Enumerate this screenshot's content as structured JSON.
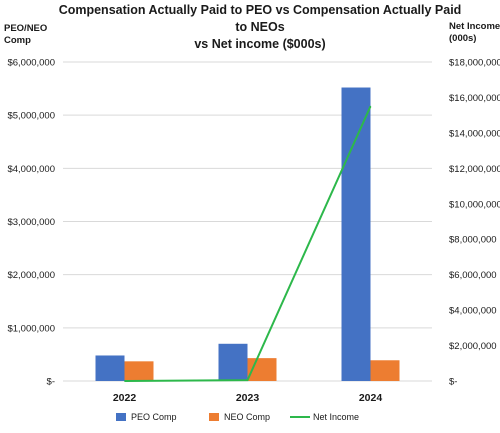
{
  "chart_data": {
    "type": "bar",
    "title_lines": [
      "Compensation Actually Paid to PEO vs Compensation Actually Paid",
      "to NEOs",
      "vs Net income ($000s)"
    ],
    "ylabel_left_lines": [
      "PEO/NEO",
      "Comp"
    ],
    "ylabel_right_lines": [
      "Net Income",
      "(000s)"
    ],
    "categories": [
      "2022",
      "2023",
      "2024"
    ],
    "ylim": [
      0,
      6000000
    ],
    "ylim_right": [
      0,
      18000000
    ],
    "yticks_left": [
      "$-",
      "$1,000,000",
      "$2,000,000",
      "$3,000,000",
      "$4,000,000",
      "$5,000,000",
      "$6,000,000"
    ],
    "yticks_right": [
      "$-",
      "$2,000,000",
      "$4,000,000",
      "$6,000,000",
      "$8,000,000",
      "$10,000,000",
      "$12,000,000",
      "$14,000,000",
      "$16,000,000",
      "$18,000,000"
    ],
    "series": [
      {
        "name": "PEO Comp",
        "kind": "bar",
        "axis": "left",
        "color": "#4472C4",
        "values": [
          480000,
          700000,
          5520000
        ]
      },
      {
        "name": "NEO Comp",
        "kind": "bar",
        "axis": "left",
        "color": "#ED7D31",
        "values": [
          370000,
          430000,
          390000
        ]
      },
      {
        "name": "Net Income",
        "kind": "line",
        "axis": "right",
        "color": "#2DB84B",
        "values": [
          0,
          50000,
          15500000
        ]
      }
    ],
    "legend_position": "bottom",
    "grid": true
  }
}
